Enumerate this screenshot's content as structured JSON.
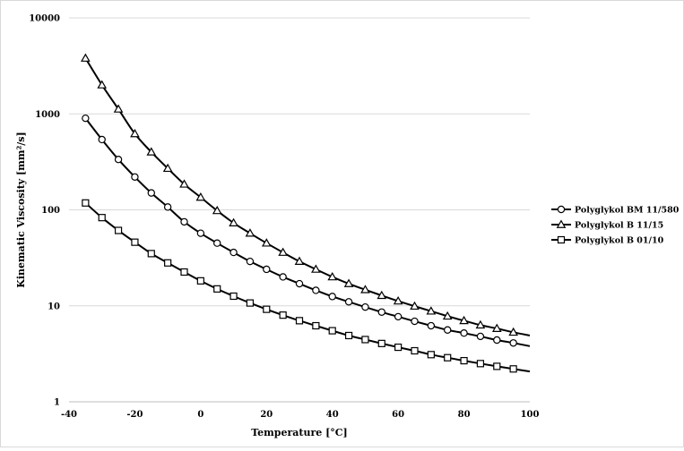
{
  "chart_data": {
    "type": "line",
    "title": "",
    "xlabel": "Temperature [°C]",
    "ylabel": "Kinematic Viscosity [mm²/s]",
    "xlim": [
      -40,
      100
    ],
    "ylim": [
      1,
      10000
    ],
    "y_scale": "log",
    "grid": "horizontal",
    "legend_position": "right",
    "x_ticks": [
      "-40",
      "-20",
      "0",
      "20",
      "40",
      "60",
      "80",
      "100"
    ],
    "y_ticks": [
      "1",
      "10",
      "100",
      "1000",
      "10000"
    ],
    "x": [
      -35,
      -30,
      -25,
      -20,
      -15,
      -10,
      -5,
      0,
      5,
      10,
      15,
      20,
      25,
      30,
      35,
      40,
      45,
      50,
      55,
      60,
      65,
      70,
      75,
      80,
      85,
      90,
      95
    ],
    "series": [
      {
        "name": "Polyglykol BM 11/580",
        "marker": "circle",
        "values": [
          900,
          540,
          335,
          220,
          150,
          107,
          75,
          57,
          45,
          36,
          29,
          24,
          20,
          17,
          14.5,
          12.5,
          11,
          9.7,
          8.6,
          7.7,
          6.9,
          6.2,
          5.6,
          5.2,
          4.8,
          4.4,
          4.1
        ],
        "curve_end": [
          100,
          3.8
        ]
      },
      {
        "name": "Polyglykol  B 11/15",
        "marker": "triangle",
        "values": [
          3800,
          2000,
          1120,
          620,
          400,
          270,
          185,
          135,
          98,
          73,
          57,
          45,
          36,
          29,
          24,
          20,
          17,
          14.7,
          12.8,
          11.2,
          9.9,
          8.8,
          7.8,
          7.0,
          6.3,
          5.8,
          5.3
        ],
        "curve_end": [
          100,
          4.9
        ]
      },
      {
        "name": "Polyglykol B 01/10",
        "marker": "square",
        "values": [
          118,
          83,
          61,
          46,
          35,
          28,
          22.5,
          18.2,
          15.0,
          12.6,
          10.7,
          9.2,
          8.0,
          7.0,
          6.2,
          5.5,
          4.9,
          4.45,
          4.05,
          3.7,
          3.4,
          3.1,
          2.88,
          2.68,
          2.5,
          2.34,
          2.2
        ],
        "curve_end": [
          100,
          2.07
        ]
      }
    ]
  }
}
